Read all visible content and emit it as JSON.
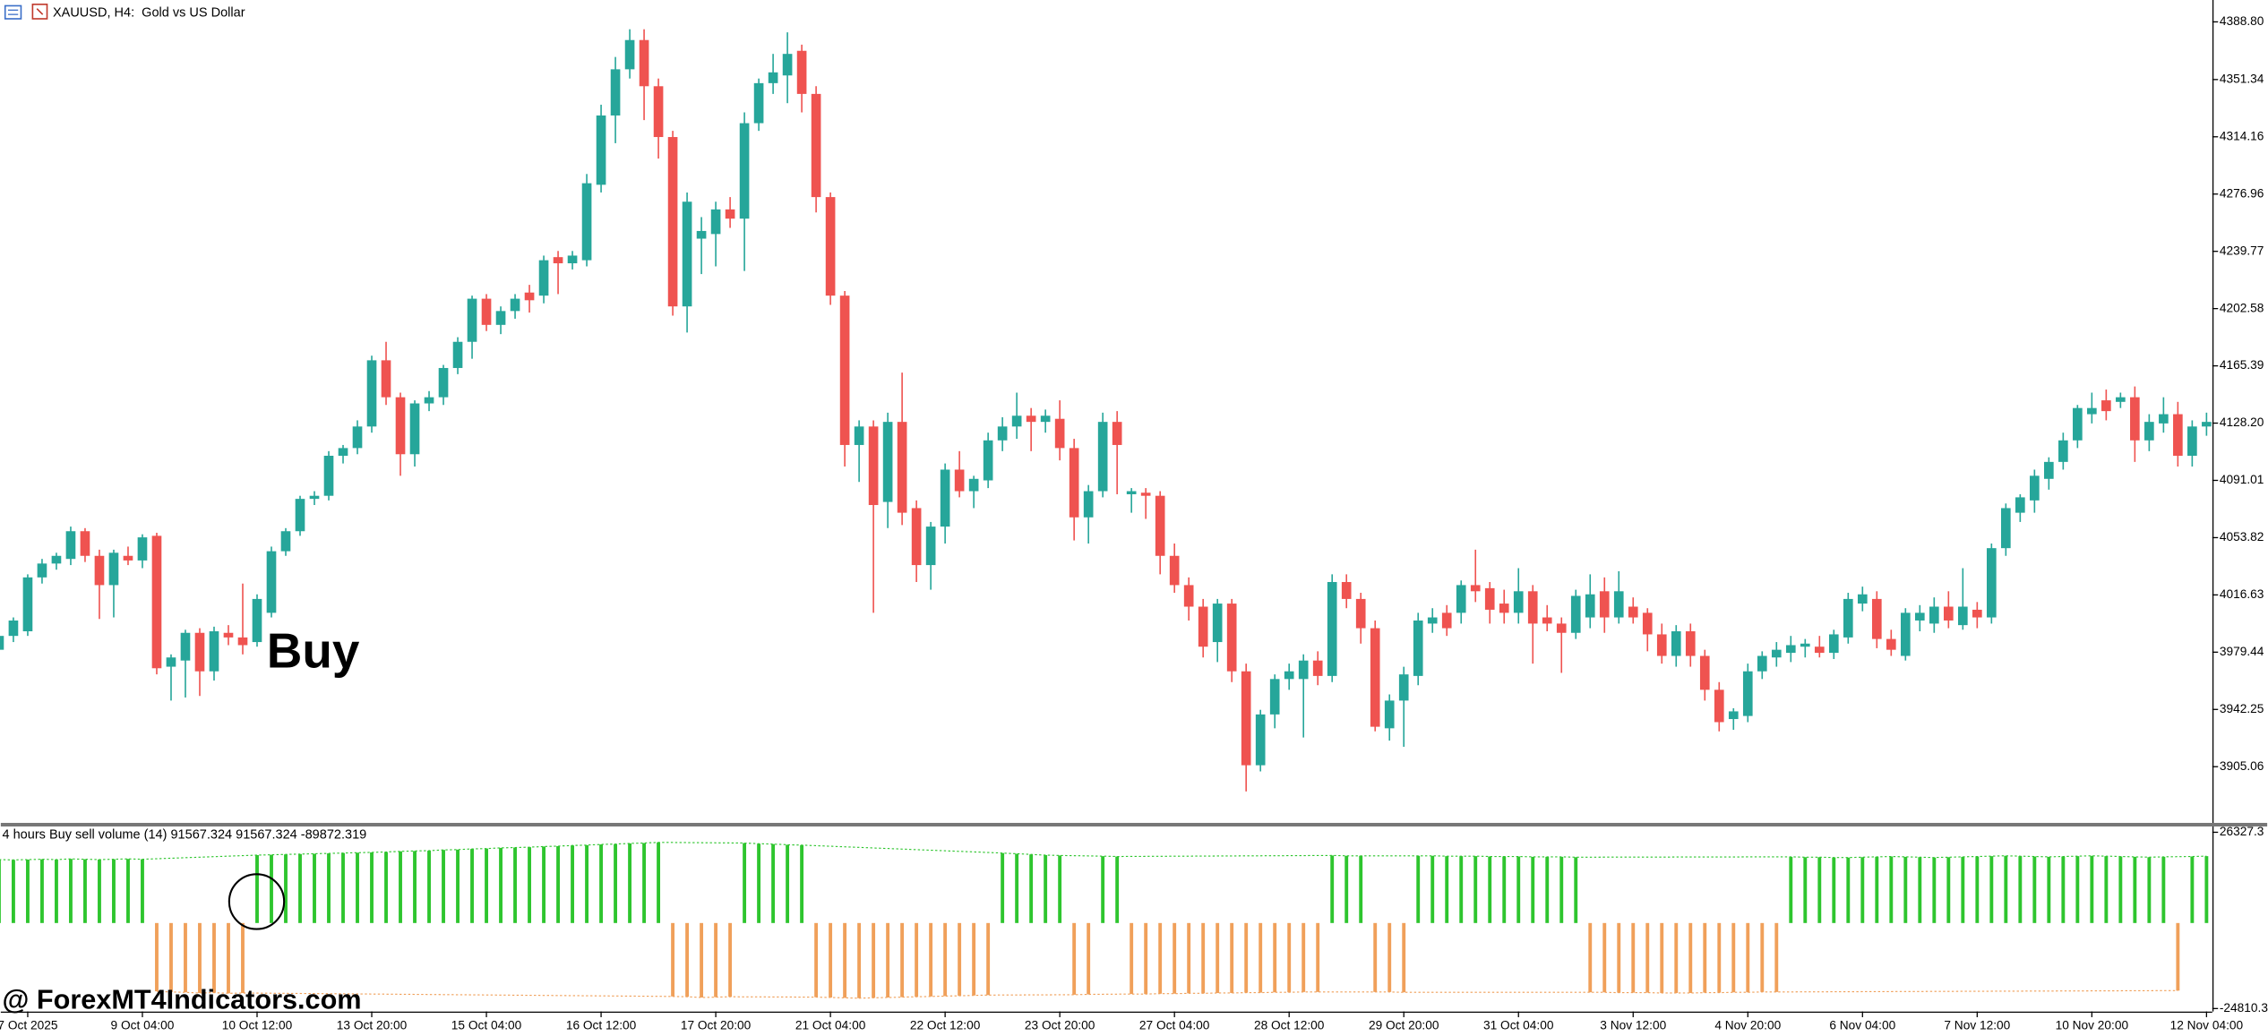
{
  "chart_data": [
    {
      "type": "candlestick",
      "title": "XAUUSD, H4:  Gold vs US Dollar",
      "annotation": "Buy",
      "watermark": "@ ForexMT4Indicators.com",
      "up_color": "#26a69a",
      "down_color": "#ef5350",
      "ylim": [
        3868.1,
        4403
      ],
      "yticks": [
        {
          "value": 4388.8,
          "label": "4388.80"
        },
        4351.34,
        4314.16,
        4276.96,
        4239.77,
        4202.58,
        4165.39,
        {
          "value": 4128.2,
          "label": "4128.20"
        },
        4091.01,
        4053.82,
        4016.63,
        3979.44,
        3942.25,
        3905.06
      ],
      "categories": [
        null,
        null,
        "7 Oct 2025",
        null,
        null,
        null,
        null,
        null,
        null,
        null,
        "9 Oct 04:00",
        null,
        null,
        null,
        null,
        null,
        null,
        null,
        "10 Oct 12:00",
        null,
        null,
        null,
        null,
        null,
        null,
        null,
        "13 Oct 20:00",
        null,
        null,
        null,
        null,
        null,
        null,
        null,
        "15 Oct 04:00",
        null,
        null,
        null,
        null,
        null,
        null,
        null,
        "16 Oct 12:00",
        null,
        null,
        null,
        null,
        null,
        null,
        null,
        "17 Oct 20:00",
        null,
        null,
        null,
        null,
        null,
        null,
        null,
        "21 Oct 04:00",
        null,
        null,
        null,
        null,
        null,
        null,
        null,
        "22 Oct 12:00",
        null,
        null,
        null,
        null,
        null,
        null,
        null,
        "23 Oct 20:00",
        null,
        null,
        null,
        null,
        null,
        null,
        null,
        "27 Oct 04:00",
        null,
        null,
        null,
        null,
        null,
        null,
        null,
        "28 Oct 12:00",
        null,
        null,
        null,
        null,
        null,
        null,
        null,
        "29 Oct 20:00",
        null,
        null,
        null,
        null,
        null,
        null,
        null,
        "31 Oct 04:00",
        null,
        null,
        null,
        null,
        null,
        null,
        null,
        "3 Nov 12:00",
        null,
        null,
        null,
        null,
        null,
        null,
        null,
        "4 Nov 20:00",
        null,
        null,
        null,
        null,
        null,
        null,
        null,
        "6 Nov 04:00",
        null,
        null,
        null,
        null,
        null,
        null,
        null,
        "7 Nov 12:00",
        null,
        null,
        null,
        null,
        null,
        null,
        null,
        "10 Nov 20:00",
        null,
        null,
        null,
        null,
        null,
        null,
        null,
        "12 Nov 04:00"
      ],
      "candles": [
        [
          3981,
          3995,
          3976,
          3990
        ],
        [
          3990,
          4002,
          3986,
          4000
        ],
        [
          3993,
          4030,
          3990,
          4028
        ],
        [
          4028,
          4040,
          4024,
          4037
        ],
        [
          4037,
          4044,
          4033,
          4042
        ],
        [
          4040,
          4061,
          4036,
          4058
        ],
        [
          4058,
          4060,
          4038,
          4042
        ],
        [
          4042,
          4046,
          4001,
          4023
        ],
        [
          4023,
          4046,
          4002,
          4044
        ],
        [
          4042,
          4048,
          4036,
          4039
        ],
        [
          4039,
          4056,
          4034,
          4054
        ],
        [
          4055,
          4057,
          3965,
          3969
        ],
        [
          3970,
          3978,
          3948,
          3976
        ],
        [
          3974,
          3994,
          3950,
          3992
        ],
        [
          3992,
          3995,
          3951,
          3967
        ],
        [
          3967,
          3996,
          3961,
          3993
        ],
        [
          3992,
          3997,
          3984,
          3989
        ],
        [
          3989,
          4024,
          3978,
          3984
        ],
        [
          3986,
          4017,
          3983,
          4014
        ],
        [
          4005,
          4048,
          4002,
          4045
        ],
        [
          4045,
          4060,
          4042,
          4058
        ],
        [
          4058,
          4081,
          4055,
          4079
        ],
        [
          4079,
          4084,
          4075,
          4081
        ],
        [
          4081,
          4110,
          4078,
          4107
        ],
        [
          4107,
          4114,
          4102,
          4112
        ],
        [
          4112,
          4130,
          4108,
          4126
        ],
        [
          4126,
          4172,
          4122,
          4169
        ],
        [
          4169,
          4181,
          4140,
          4145
        ],
        [
          4145,
          4148,
          4094,
          4108
        ],
        [
          4108,
          4143,
          4100,
          4141
        ],
        [
          4141,
          4149,
          4136,
          4145
        ],
        [
          4145,
          4166,
          4140,
          4164
        ],
        [
          4164,
          4184,
          4160,
          4181
        ],
        [
          4181,
          4211,
          4170,
          4209
        ],
        [
          4209,
          4212,
          4188,
          4192
        ],
        [
          4192,
          4204,
          4186,
          4201
        ],
        [
          4201,
          4212,
          4196,
          4209
        ],
        [
          4213,
          4218,
          4200,
          4208
        ],
        [
          4211,
          4237,
          4206,
          4234
        ],
        [
          4236,
          4240,
          4212,
          4232
        ],
        [
          4232,
          4240,
          4228,
          4237
        ],
        [
          4234,
          4290,
          4230,
          4284
        ],
        [
          4283,
          4335,
          4278,
          4328
        ],
        [
          4328,
          4366,
          4310,
          4358
        ],
        [
          4358,
          4384,
          4352,
          4377
        ],
        [
          4377,
          4384,
          4325,
          4347
        ],
        [
          4347,
          4352,
          4300,
          4314
        ],
        [
          4314,
          4318,
          4198,
          4204
        ],
        [
          4204,
          4278,
          4187,
          4272
        ],
        [
          4248,
          4262,
          4225,
          4253
        ],
        [
          4251,
          4272,
          4230,
          4267
        ],
        [
          4267,
          4275,
          4255,
          4261
        ],
        [
          4261,
          4330,
          4227,
          4323
        ],
        [
          4323,
          4352,
          4318,
          4349
        ],
        [
          4349,
          4368,
          4342,
          4356
        ],
        [
          4354,
          4382,
          4336,
          4368
        ],
        [
          4370,
          4374,
          4330,
          4342
        ],
        [
          4342,
          4347,
          4265,
          4275
        ],
        [
          4275,
          4278,
          4205,
          4211
        ],
        [
          4211,
          4214,
          4100,
          4114
        ],
        [
          4114,
          4130,
          4090,
          4126
        ],
        [
          4126,
          4130,
          4005,
          4075
        ],
        [
          4077,
          4135,
          4060,
          4129
        ],
        [
          4129,
          4161,
          4062,
          4070
        ],
        [
          4073,
          4078,
          4025,
          4036
        ],
        [
          4036,
          4064,
          4020,
          4061
        ],
        [
          4061,
          4102,
          4050,
          4098
        ],
        [
          4098,
          4110,
          4080,
          4084
        ],
        [
          4084,
          4094,
          4073,
          4092
        ],
        [
          4091,
          4122,
          4086,
          4117
        ],
        [
          4117,
          4132,
          4110,
          4126
        ],
        [
          4126,
          4148,
          4118,
          4133
        ],
        [
          4133,
          4138,
          4110,
          4129
        ],
        [
          4129,
          4137,
          4122,
          4133
        ],
        [
          4131,
          4143,
          4104,
          4112
        ],
        [
          4112,
          4118,
          4052,
          4067
        ],
        [
          4067,
          4088,
          4050,
          4084
        ],
        [
          4084,
          4135,
          4080,
          4129
        ],
        [
          4129,
          4136,
          4082,
          4114
        ],
        [
          4082,
          4086,
          4070,
          4084
        ],
        [
          4083,
          4086,
          4066,
          4081
        ],
        [
          4081,
          4084,
          4030,
          4042
        ],
        [
          4042,
          4050,
          4018,
          4023
        ],
        [
          4023,
          4028,
          4000,
          4009
        ],
        [
          4009,
          4014,
          3976,
          3983
        ],
        [
          3986,
          4014,
          3973,
          4011
        ],
        [
          4011,
          4014,
          3960,
          3967
        ],
        [
          3967,
          3972,
          3889,
          3906
        ],
        [
          3906,
          3942,
          3902,
          3939
        ],
        [
          3939,
          3965,
          3930,
          3962
        ],
        [
          3962,
          3972,
          3955,
          3967
        ],
        [
          3962,
          3978,
          3924,
          3974
        ],
        [
          3974,
          3980,
          3958,
          3964
        ],
        [
          3964,
          4030,
          3960,
          4025
        ],
        [
          4025,
          4030,
          4008,
          4014
        ],
        [
          4014,
          4018,
          3985,
          3995
        ],
        [
          3995,
          4000,
          3928,
          3931
        ],
        [
          3930,
          3952,
          3922,
          3948
        ],
        [
          3948,
          3970,
          3918,
          3965
        ],
        [
          3964,
          4005,
          3958,
          4000
        ],
        [
          3998,
          4008,
          3992,
          4002
        ],
        [
          4005,
          4010,
          3990,
          3995
        ],
        [
          4005,
          4026,
          3998,
          4023
        ],
        [
          4023,
          4046,
          4012,
          4019
        ],
        [
          4021,
          4025,
          3998,
          4007
        ],
        [
          4011,
          4020,
          3998,
          4005
        ],
        [
          4005,
          4034,
          3998,
          4019
        ],
        [
          4019,
          4023,
          3972,
          3998
        ],
        [
          4002,
          4010,
          3993,
          3998
        ],
        [
          3998,
          4002,
          3966,
          3992
        ],
        [
          3992,
          4020,
          3988,
          4016
        ],
        [
          4002,
          4030,
          3995,
          4017
        ],
        [
          4019,
          4028,
          3992,
          4002
        ],
        [
          4002,
          4032,
          3998,
          4019
        ],
        [
          4009,
          4015,
          3998,
          4002
        ],
        [
          4005,
          4008,
          3980,
          3991
        ],
        [
          3991,
          3998,
          3972,
          3977
        ],
        [
          3977,
          3997,
          3970,
          3993
        ],
        [
          3993,
          3998,
          3970,
          3977
        ],
        [
          3977,
          3981,
          3948,
          3955
        ],
        [
          3955,
          3960,
          3928,
          3934
        ],
        [
          3936,
          3943,
          3929,
          3941
        ],
        [
          3938,
          3972,
          3934,
          3967
        ],
        [
          3967,
          3980,
          3962,
          3977
        ],
        [
          3976,
          3986,
          3970,
          3981
        ],
        [
          3979,
          3990,
          3973,
          3984
        ],
        [
          3983,
          3988,
          3976,
          3985
        ],
        [
          3983,
          3990,
          3976,
          3979
        ],
        [
          3979,
          3994,
          3975,
          3991
        ],
        [
          3989,
          4018,
          3985,
          4014
        ],
        [
          4011,
          4022,
          4006,
          4017
        ],
        [
          4014,
          4019,
          3982,
          3988
        ],
        [
          3988,
          3994,
          3977,
          3981
        ],
        [
          3977,
          4008,
          3974,
          4005
        ],
        [
          4000,
          4010,
          3993,
          4005
        ],
        [
          3998,
          4015,
          3992,
          4009
        ],
        [
          4009,
          4019,
          3995,
          4000
        ],
        [
          3997,
          4034,
          3994,
          4009
        ],
        [
          4007,
          4012,
          3995,
          4002
        ],
        [
          4002,
          4050,
          3998,
          4047
        ],
        [
          4047,
          4076,
          4042,
          4073
        ],
        [
          4070,
          4082,
          4064,
          4080
        ],
        [
          4078,
          4098,
          4070,
          4094
        ],
        [
          4092,
          4106,
          4085,
          4103
        ],
        [
          4103,
          4122,
          4098,
          4117
        ],
        [
          4117,
          4140,
          4112,
          4138
        ],
        [
          4134,
          4148,
          4128,
          4138
        ],
        [
          4143,
          4150,
          4130,
          4136
        ],
        [
          4142,
          4148,
          4138,
          4145
        ],
        [
          4145,
          4152,
          4103,
          4117
        ],
        [
          4117,
          4134,
          4110,
          4129
        ],
        [
          4128,
          4145,
          4122,
          4134
        ],
        [
          4134,
          4142,
          4100,
          4107
        ],
        [
          4107,
          4130,
          4100,
          4126
        ],
        [
          4126,
          4135,
          4120,
          4129
        ]
      ]
    },
    {
      "type": "bar",
      "title": "4 hours Buy sell volume (14) 91567.324 91567.324 -89872.319",
      "up_color": "#2ec52e",
      "down_color": "#f0a05a",
      "ylim": [
        -24810.3,
        26327.3
      ],
      "yticks": [
        26327.3,
        -24810.3
      ],
      "values": [
        18400,
        18300,
        18400,
        18500,
        18400,
        18600,
        18500,
        18400,
        18500,
        18600,
        18500,
        -19800,
        -20000,
        -20100,
        -20300,
        -20200,
        -20400,
        -20300,
        19700,
        19800,
        19900,
        20000,
        20100,
        20200,
        20300,
        20400,
        20500,
        20600,
        20800,
        20900,
        21000,
        21200,
        21300,
        21500,
        21600,
        21800,
        21900,
        22000,
        22200,
        22300,
        22500,
        22600,
        22800,
        22900,
        23100,
        23200,
        23400,
        -21300,
        -21400,
        -21600,
        -21500,
        -21400,
        23200,
        23000,
        22900,
        22700,
        22600,
        -21500,
        -21600,
        -21700,
        -21800,
        -21700,
        -21600,
        -21500,
        -21400,
        -21300,
        -21200,
        -21100,
        -21000,
        -20900,
        20300,
        20100,
        19900,
        19700,
        19600,
        -20800,
        -20700,
        19400,
        19300,
        -20600,
        -20600,
        -20500,
        -20500,
        -20400,
        -20400,
        -20300,
        -20300,
        -20200,
        -20200,
        -20100,
        -20100,
        -20000,
        -20000,
        19600,
        19500,
        19500,
        -20000,
        -20000,
        -20100,
        19500,
        19500,
        19400,
        19400,
        19400,
        19300,
        19300,
        19300,
        19200,
        19200,
        19200,
        19100,
        -20100,
        -20100,
        -20200,
        -20200,
        -20200,
        -20300,
        -20300,
        -20300,
        -20200,
        -20200,
        -20100,
        -20100,
        -20000,
        -20000,
        19200,
        19100,
        19100,
        19000,
        19000,
        19100,
        19200,
        19300,
        19200,
        19100,
        19000,
        19100,
        19200,
        19300,
        19400,
        19500,
        19400,
        19300,
        19200,
        19300,
        19400,
        19500,
        19400,
        19300,
        19200,
        19100,
        19200,
        -19600,
        19300,
        19400
      ]
    }
  ]
}
